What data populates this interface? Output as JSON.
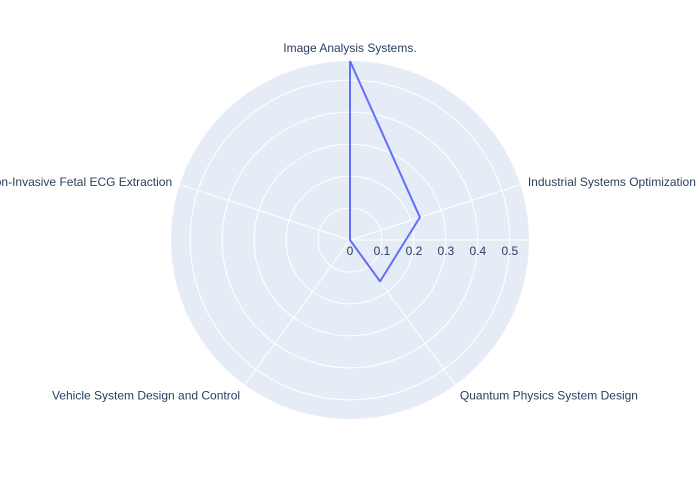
{
  "chart_data": {
    "type": "radar",
    "axes": [
      "Image Analysis Systems.",
      "Industrial Systems Optimization",
      "Quantum Physics System Design",
      "Vehicle System Design and Control",
      "Non-Invasive Fetal ECG Extraction"
    ],
    "series": [
      {
        "values": [
          0.56,
          0.23,
          0.16,
          0.0,
          0.0
        ]
      }
    ],
    "radial_range": [
      0,
      0.56
    ],
    "radial_ticks": [
      "0",
      "0.1",
      "0.2",
      "0.3",
      "0.4",
      "0.5"
    ],
    "grid": true,
    "legend": "none",
    "colors": {
      "background": "#e5ecf6",
      "grid": "#ffffff",
      "line": "#636efa",
      "text": "#2a3f5f"
    }
  }
}
